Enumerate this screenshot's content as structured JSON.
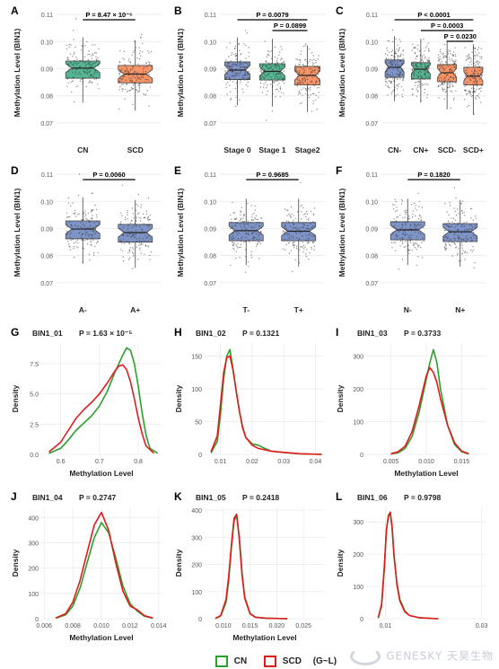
{
  "colors": {
    "cn": "#55b592",
    "scd": "#f79468",
    "blue": "#7e93c6",
    "line_green": "#2ca02c",
    "line_red": "#e31a1c",
    "box_stroke": "#444444"
  },
  "watermark": {
    "text_en": "GENESKY",
    "text_cn": "天昊生物"
  },
  "legend": {
    "items": [
      {
        "label": "CN",
        "color": "#2ca02c"
      },
      {
        "label": "SCD",
        "color": "#e31a1c"
      }
    ],
    "note": "(G~L)"
  },
  "chart_data": [
    {
      "panel": "A",
      "type": "box",
      "ylabel": "Methylation Level (BIN1)",
      "ylim": [
        0.065,
        0.112
      ],
      "yticks": [
        0.07,
        0.08,
        0.09,
        0.1,
        0.11
      ],
      "categories": [
        "CN",
        "SCD"
      ],
      "colors": [
        "#55b592",
        "#f79468"
      ],
      "boxes": [
        {
          "q1": 0.0865,
          "median": 0.0902,
          "q3": 0.0928,
          "whisker_low": 0.0775,
          "whisker_high": 0.1015
        },
        {
          "q1": 0.0848,
          "median": 0.088,
          "q3": 0.0912,
          "whisker_low": 0.0745,
          "whisker_high": 0.1005
        }
      ],
      "comparisons": [
        {
          "from": 0,
          "to": 1,
          "label": "P = 8.47 × 10⁻⁶"
        }
      ]
    },
    {
      "panel": "B",
      "type": "box",
      "ylabel": "Methylation Level (BIN1)",
      "ylim": [
        0.065,
        0.112
      ],
      "yticks": [
        0.07,
        0.08,
        0.09,
        0.1,
        0.11
      ],
      "categories": [
        "Stage 0",
        "Stage 1",
        "Stage2"
      ],
      "colors": [
        "#7e93c6",
        "#55b592",
        "#f79468"
      ],
      "boxes": [
        {
          "q1": 0.086,
          "median": 0.0895,
          "q3": 0.0925,
          "whisker_low": 0.0765,
          "whisker_high": 0.1015
        },
        {
          "q1": 0.0858,
          "median": 0.089,
          "q3": 0.0918,
          "whisker_low": 0.076,
          "whisker_high": 0.101
        },
        {
          "q1": 0.084,
          "median": 0.0875,
          "q3": 0.0908,
          "whisker_low": 0.074,
          "whisker_high": 0.0985
        }
      ],
      "comparisons": [
        {
          "from": 0,
          "to": 2,
          "label": "P = 0.0079"
        },
        {
          "from": 1,
          "to": 2,
          "label": "P = 0.0899"
        }
      ]
    },
    {
      "panel": "C",
      "type": "box",
      "ylabel": "Methylation Level (BIN1)",
      "ylim": [
        0.065,
        0.112
      ],
      "yticks": [
        0.07,
        0.08,
        0.09,
        0.1,
        0.11
      ],
      "categories": [
        "CN-",
        "CN+",
        "SCD-",
        "SCD+"
      ],
      "colors": [
        "#7e93c6",
        "#55b592",
        "#f79468",
        "#f79468"
      ],
      "boxes": [
        {
          "q1": 0.0868,
          "median": 0.0905,
          "q3": 0.0932,
          "whisker_low": 0.078,
          "whisker_high": 0.102
        },
        {
          "q1": 0.0862,
          "median": 0.0898,
          "q3": 0.0922,
          "whisker_low": 0.0775,
          "whisker_high": 0.101
        },
        {
          "q1": 0.0852,
          "median": 0.0885,
          "q3": 0.0915,
          "whisker_low": 0.075,
          "whisker_high": 0.1005
        },
        {
          "q1": 0.084,
          "median": 0.0872,
          "q3": 0.0905,
          "whisker_low": 0.073,
          "whisker_high": 0.099
        }
      ],
      "comparisons": [
        {
          "from": 0,
          "to": 3,
          "label": "P < 0.0001"
        },
        {
          "from": 1,
          "to": 3,
          "label": "P = 0.0003"
        },
        {
          "from": 2,
          "to": 3,
          "label": "P = 0.0230"
        }
      ]
    },
    {
      "panel": "D",
      "type": "box",
      "ylabel": "Methylation Level (BIN1)",
      "ylim": [
        0.065,
        0.112
      ],
      "yticks": [
        0.07,
        0.08,
        0.09,
        0.1,
        0.11
      ],
      "categories": [
        "A-",
        "A+"
      ],
      "colors": [
        "#7e93c6",
        "#7e93c6"
      ],
      "boxes": [
        {
          "q1": 0.0862,
          "median": 0.0898,
          "q3": 0.0928,
          "whisker_low": 0.077,
          "whisker_high": 0.1015
        },
        {
          "q1": 0.085,
          "median": 0.0885,
          "q3": 0.0915,
          "whisker_low": 0.0755,
          "whisker_high": 0.1005
        }
      ],
      "comparisons": [
        {
          "from": 0,
          "to": 1,
          "label": "P = 0.0060"
        }
      ]
    },
    {
      "panel": "E",
      "type": "box",
      "ylabel": "Methylation Level (BIN1)",
      "ylim": [
        0.065,
        0.112
      ],
      "yticks": [
        0.07,
        0.08,
        0.09,
        0.1,
        0.11
      ],
      "categories": [
        "T-",
        "T+"
      ],
      "colors": [
        "#7e93c6",
        "#7e93c6"
      ],
      "boxes": [
        {
          "q1": 0.0855,
          "median": 0.0892,
          "q3": 0.0922,
          "whisker_low": 0.0765,
          "whisker_high": 0.101
        },
        {
          "q1": 0.0855,
          "median": 0.089,
          "q3": 0.0922,
          "whisker_low": 0.076,
          "whisker_high": 0.101
        }
      ],
      "comparisons": [
        {
          "from": 0,
          "to": 1,
          "label": "P = 0.9685"
        }
      ]
    },
    {
      "panel": "F",
      "type": "box",
      "ylabel": "Methylation Level (BIN1)",
      "ylim": [
        0.065,
        0.112
      ],
      "yticks": [
        0.07,
        0.08,
        0.09,
        0.1,
        0.11
      ],
      "categories": [
        "N-",
        "N+"
      ],
      "colors": [
        "#7e93c6",
        "#7e93c6"
      ],
      "boxes": [
        {
          "q1": 0.0858,
          "median": 0.0895,
          "q3": 0.0925,
          "whisker_low": 0.0765,
          "whisker_high": 0.101
        },
        {
          "q1": 0.0852,
          "median": 0.0888,
          "q3": 0.0918,
          "whisker_low": 0.076,
          "whisker_high": 0.1005
        }
      ],
      "comparisons": [
        {
          "from": 0,
          "to": 1,
          "label": "P = 0.1820"
        }
      ]
    },
    {
      "panel": "G",
      "type": "line",
      "title": "BIN1_01",
      "pvalue": "P = 1.63 × 10⁻⁵",
      "xlabel": "Methylation Level",
      "ylabel": "Density",
      "xlim": [
        0.55,
        0.86
      ],
      "ylim": [
        0,
        9.2
      ],
      "xticks": [
        0.6,
        0.7,
        0.8
      ],
      "xtick_labels": [
        "0.6",
        "0.7",
        "0.8"
      ],
      "yticks": [
        0.0,
        2.5,
        5.0,
        7.5
      ],
      "ytick_labels": [
        "0.0",
        "2.5",
        "5.0",
        "7.5"
      ],
      "series": [
        {
          "name": "CN",
          "x": [
            0.57,
            0.6,
            0.62,
            0.64,
            0.66,
            0.68,
            0.7,
            0.72,
            0.74,
            0.76,
            0.77,
            0.78,
            0.79,
            0.8,
            0.81,
            0.82,
            0.83,
            0.85
          ],
          "y": [
            0.1,
            0.5,
            1.2,
            2.0,
            2.6,
            3.2,
            4.0,
            5.2,
            6.8,
            8.2,
            8.8,
            8.6,
            7.5,
            5.6,
            3.4,
            1.6,
            0.5,
            0.1
          ]
        },
        {
          "name": "SCD",
          "x": [
            0.57,
            0.6,
            0.62,
            0.64,
            0.66,
            0.68,
            0.7,
            0.72,
            0.74,
            0.75,
            0.76,
            0.77,
            0.78,
            0.79,
            0.8,
            0.81,
            0.82,
            0.84
          ],
          "y": [
            0.2,
            1.0,
            2.0,
            3.0,
            3.7,
            4.3,
            5.0,
            5.9,
            6.9,
            7.3,
            7.4,
            7.0,
            6.0,
            4.6,
            3.0,
            1.7,
            0.7,
            0.1
          ]
        }
      ]
    },
    {
      "panel": "H",
      "type": "line",
      "title": "BIN1_02",
      "pvalue": "P = 0.1321",
      "xlabel": "",
      "ylabel": "Density",
      "xlim": [
        0.005,
        0.043
      ],
      "ylim": [
        0,
        170
      ],
      "xticks": [
        0.01,
        0.02,
        0.03,
        0.04
      ],
      "xtick_labels": [
        "0.01",
        "0.02",
        "0.03",
        "0.04"
      ],
      "yticks": [
        0,
        50,
        100,
        150
      ],
      "ytick_labels": [
        "0",
        "50",
        "100",
        "150"
      ],
      "series": [
        {
          "name": "CN",
          "x": [
            0.007,
            0.009,
            0.01,
            0.011,
            0.012,
            0.013,
            0.014,
            0.015,
            0.016,
            0.017,
            0.018,
            0.02,
            0.022,
            0.024,
            0.026,
            0.03,
            0.035,
            0.042
          ],
          "y": [
            2,
            20,
            60,
            115,
            150,
            160,
            130,
            95,
            65,
            40,
            26,
            16,
            14,
            9,
            5,
            3,
            1,
            0
          ]
        },
        {
          "name": "SCD",
          "x": [
            0.007,
            0.009,
            0.01,
            0.011,
            0.012,
            0.013,
            0.014,
            0.015,
            0.016,
            0.017,
            0.018,
            0.02,
            0.022,
            0.024,
            0.026,
            0.03,
            0.035,
            0.042
          ],
          "y": [
            4,
            28,
            75,
            125,
            148,
            150,
            128,
            96,
            66,
            42,
            26,
            14,
            9,
            7,
            5,
            3,
            1,
            0
          ]
        }
      ]
    },
    {
      "panel": "I",
      "type": "line",
      "title": "BIN1_03",
      "pvalue": "P = 0.3733",
      "xlabel": "Methylation Level",
      "ylabel": "Density",
      "xlim": [
        0.0015,
        0.0185
      ],
      "ylim": [
        0,
        340
      ],
      "xticks": [
        0.005,
        0.01,
        0.015
      ],
      "xtick_labels": [
        "0.005",
        "0.010",
        "0.015"
      ],
      "yticks": [
        0,
        100,
        200,
        300
      ],
      "ytick_labels": [
        "0",
        "100",
        "200",
        "300"
      ],
      "series": [
        {
          "name": "CN",
          "x": [
            0.005,
            0.006,
            0.007,
            0.008,
            0.009,
            0.01,
            0.0105,
            0.011,
            0.0115,
            0.012,
            0.013,
            0.014,
            0.015,
            0.016
          ],
          "y": [
            1,
            5,
            18,
            55,
            130,
            230,
            280,
            320,
            280,
            200,
            90,
            30,
            8,
            1
          ]
        },
        {
          "name": "SCD",
          "x": [
            0.005,
            0.006,
            0.007,
            0.008,
            0.009,
            0.01,
            0.0105,
            0.011,
            0.0115,
            0.012,
            0.013,
            0.014,
            0.015,
            0.016
          ],
          "y": [
            2,
            8,
            25,
            70,
            150,
            240,
            265,
            250,
            220,
            170,
            90,
            35,
            10,
            2
          ]
        }
      ]
    },
    {
      "panel": "J",
      "type": "line",
      "title": "BIN1_04",
      "pvalue": "P = 0.2747",
      "xlabel": "Methylation Level",
      "ylabel": "Density",
      "xlim": [
        0.0058,
        0.0142
      ],
      "ylim": [
        0,
        440
      ],
      "xticks": [
        0.006,
        0.008,
        0.01,
        0.012,
        0.014
      ],
      "xtick_labels": [
        "0.006",
        "0.008",
        "0.010",
        "0.012",
        "0.014"
      ],
      "yticks": [
        0,
        100,
        200,
        300,
        400
      ],
      "ytick_labels": [
        "0",
        "100",
        "200",
        "300",
        "400"
      ],
      "series": [
        {
          "name": "CN",
          "x": [
            0.0068,
            0.0075,
            0.008,
            0.0085,
            0.009,
            0.0095,
            0.01,
            0.0105,
            0.011,
            0.0115,
            0.012,
            0.0125,
            0.013,
            0.0136
          ],
          "y": [
            2,
            15,
            50,
            120,
            220,
            320,
            380,
            340,
            240,
            130,
            60,
            30,
            10,
            2
          ]
        },
        {
          "name": "SCD",
          "x": [
            0.0068,
            0.0075,
            0.008,
            0.0085,
            0.009,
            0.0095,
            0.01,
            0.0105,
            0.011,
            0.0115,
            0.012,
            0.0125,
            0.013,
            0.0136
          ],
          "y": [
            3,
            20,
            65,
            150,
            260,
            370,
            420,
            350,
            220,
            110,
            50,
            35,
            12,
            3
          ]
        }
      ]
    },
    {
      "panel": "K",
      "type": "line",
      "title": "BIN1_05",
      "pvalue": "P = 0.2418",
      "xlabel": "Methylation Level",
      "ylabel": "Density",
      "xlim": [
        0.0065,
        0.029
      ],
      "ylim": [
        0,
        410
      ],
      "xticks": [
        0.01,
        0.015,
        0.02,
        0.025
      ],
      "xtick_labels": [
        "0.010",
        "0.015",
        "0.020",
        "0.025"
      ],
      "yticks": [
        0,
        100,
        200,
        300,
        400
      ],
      "ytick_labels": [
        "0",
        "100",
        "200",
        "300",
        "400"
      ],
      "series": [
        {
          "name": "CN",
          "x": [
            0.0085,
            0.0095,
            0.0105,
            0.011,
            0.0115,
            0.012,
            0.0125,
            0.013,
            0.0135,
            0.014,
            0.015,
            0.016,
            0.018,
            0.022
          ],
          "y": [
            1,
            10,
            60,
            140,
            260,
            360,
            380,
            300,
            170,
            80,
            20,
            6,
            2,
            0
          ]
        },
        {
          "name": "SCD",
          "x": [
            0.0085,
            0.0095,
            0.0105,
            0.011,
            0.0115,
            0.012,
            0.0125,
            0.013,
            0.0135,
            0.014,
            0.015,
            0.016,
            0.018,
            0.022
          ],
          "y": [
            1,
            12,
            70,
            155,
            270,
            370,
            385,
            290,
            160,
            75,
            18,
            5,
            2,
            0
          ]
        }
      ]
    },
    {
      "panel": "L",
      "type": "line",
      "title": "BIN1_06",
      "pvalue": "P = 0.9798",
      "xlabel": "",
      "ylabel": "Density",
      "xlim": [
        0.006,
        0.031
      ],
      "ylim": [
        0,
        345
      ],
      "xticks": [
        0.01,
        0.03
      ],
      "xtick_labels": [
        "0.01",
        "0.03"
      ],
      "yticks": [
        0,
        100,
        200,
        300
      ],
      "ytick_labels": [
        "0",
        "100",
        "200",
        "300"
      ],
      "series": [
        {
          "name": "CN",
          "x": [
            0.0085,
            0.0092,
            0.0098,
            0.0102,
            0.0106,
            0.011,
            0.0114,
            0.0118,
            0.0124,
            0.013,
            0.014,
            0.015,
            0.017,
            0.021
          ],
          "y": [
            2,
            40,
            160,
            270,
            320,
            330,
            280,
            190,
            110,
            60,
            25,
            10,
            3,
            0
          ]
        },
        {
          "name": "SCD",
          "x": [
            0.0085,
            0.0092,
            0.0098,
            0.0102,
            0.0106,
            0.011,
            0.0114,
            0.0118,
            0.0124,
            0.013,
            0.014,
            0.015,
            0.017,
            0.021
          ],
          "y": [
            3,
            45,
            170,
            275,
            315,
            330,
            285,
            195,
            105,
            55,
            22,
            10,
            3,
            0
          ]
        }
      ]
    }
  ]
}
